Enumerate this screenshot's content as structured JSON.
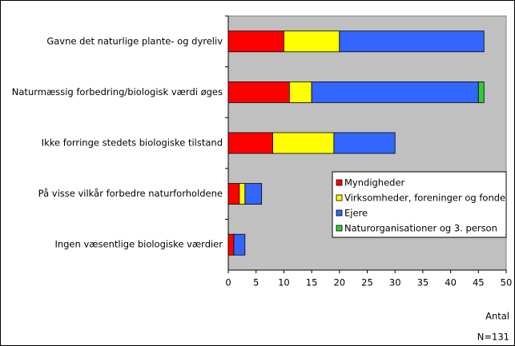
{
  "chart_data": {
    "type": "stacked-barh",
    "categories": [
      "Gavne det naturlige plante- og dyreliv",
      "Naturmæssig forbedring/biologisk værdi øges",
      "Ikke forringe stedets biologiske tilstand",
      "På visse vilkår forbedre naturforholdene",
      "Ingen væsentlige biologiske værdier"
    ],
    "series": [
      {
        "name": "Myndigheder",
        "color": "#ff0000",
        "values": [
          10,
          11,
          8,
          2,
          1
        ]
      },
      {
        "name": "Virksomheder, foreninger og fonde",
        "color": "#ffff00",
        "values": [
          10,
          4,
          11,
          1,
          0
        ]
      },
      {
        "name": "Ejere",
        "color": "#3366ff",
        "values": [
          26,
          30,
          11,
          3,
          2
        ]
      },
      {
        "name": "Naturorganisationer og 3. person",
        "color": "#33cc33",
        "values": [
          0,
          1,
          0,
          0,
          0
        ]
      }
    ],
    "xlim": [
      0,
      50
    ],
    "xticks": [
      0,
      5,
      10,
      15,
      20,
      25,
      30,
      35,
      40,
      45,
      50
    ],
    "x_label": "Antal",
    "annotation": "N=131",
    "legend": "lower-right",
    "plot_background": "#c0c0c0"
  }
}
